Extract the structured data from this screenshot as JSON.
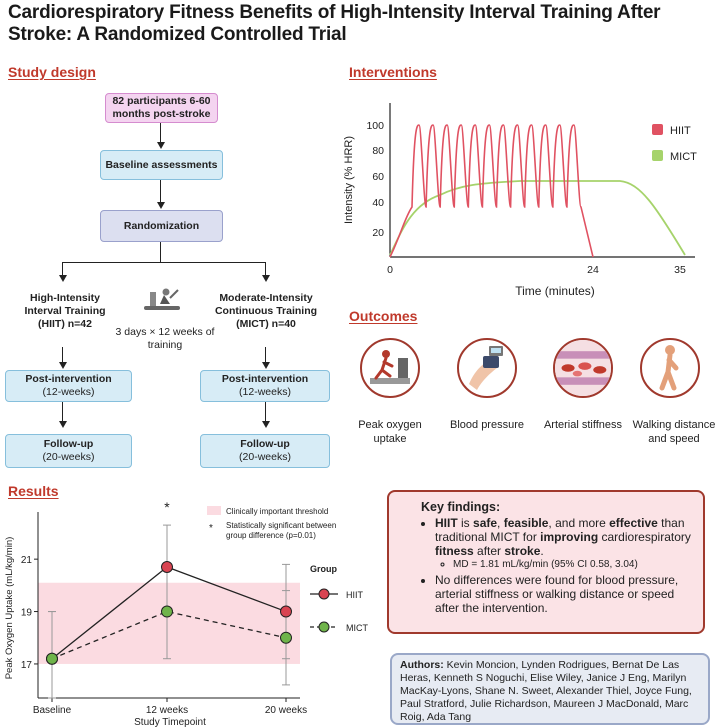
{
  "title": "Cardiorespiratory Fitness Benefits of High-Intensity Interval Training After Stroke: A Randomized Controlled Trial",
  "study_design": {
    "heading": "Study design",
    "participants": "82 participants 6-60 months post-stroke",
    "baseline": "Baseline assessments",
    "randomization": "Randomization",
    "hiit_arm": "High-Intensity Interval Training (HIIT) n=42",
    "mict_arm": "Moderate-Intensity Continuous Training (MICT) n=40",
    "training": "3 days × 12 weeks of training",
    "post_title": "Post-intervention",
    "post_sub": "(12-weeks)",
    "follow_title": "Follow-up",
    "follow_sub": "(20-weeks)"
  },
  "interventions": {
    "heading": "Interventions",
    "ylabel": "Intensity (% HRR)",
    "xlabel": "Time (minutes)",
    "yticks": [
      "100",
      "80",
      "60",
      "40",
      "20"
    ],
    "xticks": [
      "0",
      "24",
      "35"
    ],
    "legend": [
      {
        "label": "HIIT",
        "color": "#d94452"
      },
      {
        "label": "MICT",
        "color": "#8cc63f"
      }
    ]
  },
  "outcomes": {
    "heading": "Outcomes",
    "items": [
      {
        "label": "Peak oxygen uptake"
      },
      {
        "label": "Blood pressure"
      },
      {
        "label": "Arterial stiffness"
      },
      {
        "label": "Walking distance and speed"
      }
    ]
  },
  "results": {
    "heading": "Results",
    "threshold_label": "Clinically important threshold",
    "sig_label": "Statistically significant between group difference (p=0.01)",
    "star": "*",
    "group_label": "Group"
  },
  "chart_data": {
    "type": "line",
    "xlabel": "Study Timepoint",
    "ylabel": "Peak Oxygen Uptake (mL/kg/min)",
    "categories": [
      "Baseline",
      "12 weeks",
      "20 weeks"
    ],
    "yticks": [
      17,
      19,
      21
    ],
    "ylim": [
      15.7,
      22.8
    ],
    "threshold_band": [
      17.0,
      20.1
    ],
    "series": [
      {
        "name": "HIIT",
        "values": [
          17.2,
          20.7,
          19.0
        ],
        "err_low": [
          15.7,
          19.1,
          17.2
        ],
        "err_high": [
          19.0,
          22.3,
          20.8
        ],
        "color": "#d94452",
        "style": "solid"
      },
      {
        "name": "MICT",
        "values": [
          17.2,
          19.0,
          18.0
        ],
        "err_low": [
          15.7,
          17.2,
          16.2
        ],
        "err_high": [
          19.0,
          20.8,
          19.8
        ],
        "color": "#6fb44a",
        "style": "dashed"
      }
    ]
  },
  "key_findings": {
    "heading": "Key findings:",
    "b1_p1": "HIIT",
    "b1_p2": " is ",
    "b1_p3": "safe",
    "b1_p4": ", ",
    "b1_p5": "feasible",
    "b1_p6": ", and more ",
    "b1_p7": "effective",
    "b1_p8": " than traditional MICT for ",
    "b1_p9": "improving",
    "b1_p10": " cardiorespiratory ",
    "b1_p11": "fitness",
    "b1_p12": " after ",
    "b1_p13": "stroke",
    "b1_p14": ".",
    "sub": "MD = 1.81 mL/kg/min (95% CI 0.58, 3.04)",
    "b2": "No differences were found for blood pressure, arterial stiffness or walking distance or speed after the intervention."
  },
  "authors": {
    "label": "Authors:",
    "names": "Kevin Moncion, Lynden Rodrigues, Bernat De Las Heras, Kenneth S Noguchi, Elise Wiley, Janice J Eng, Marilyn MacKay-Lyons, Shane N. Sweet, Alexander Thiel, Joyce Fung, Paul Stratford, Julie Richardson, Maureen J MacDonald, Marc Roig, Ada Tang"
  }
}
